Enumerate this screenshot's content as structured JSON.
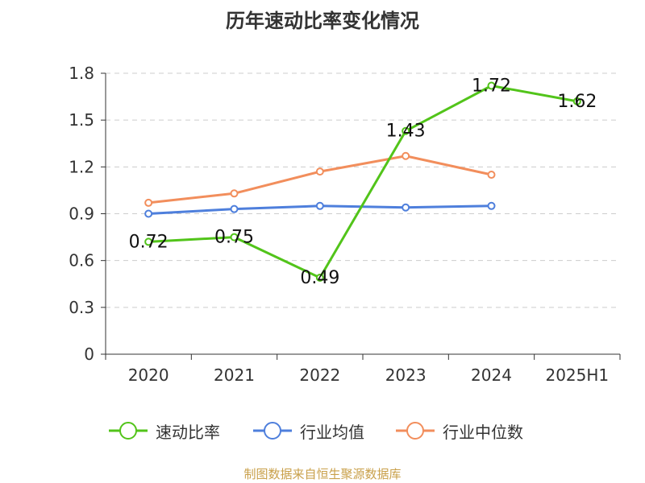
{
  "chart_data": {
    "type": "line",
    "title": "历年速动比率变化情况",
    "categories": [
      "2020",
      "2021",
      "2022",
      "2023",
      "2024",
      "2025H1"
    ],
    "ylim": [
      0,
      1.8
    ],
    "yticks": [
      "0",
      "0.3",
      "0.6",
      "0.9",
      "1.2",
      "1.5",
      "1.8"
    ],
    "grid": true,
    "legend_position": "bottom",
    "series": [
      {
        "name": "速动比率",
        "color": "#52c41a",
        "values": [
          0.72,
          0.75,
          0.49,
          1.43,
          1.72,
          1.62
        ],
        "labels": [
          "0.72",
          "0.75",
          "0.49",
          "1.43",
          "1.72",
          "1.62"
        ]
      },
      {
        "name": "行业均值",
        "color": "#4e7fdc",
        "values": [
          0.9,
          0.93,
          0.95,
          0.94,
          0.95,
          null
        ]
      },
      {
        "name": "行业中位数",
        "color": "#f28e5c",
        "values": [
          0.97,
          1.03,
          1.17,
          1.27,
          1.15,
          null
        ]
      }
    ]
  },
  "source": "制图数据来自恒生聚源数据库"
}
